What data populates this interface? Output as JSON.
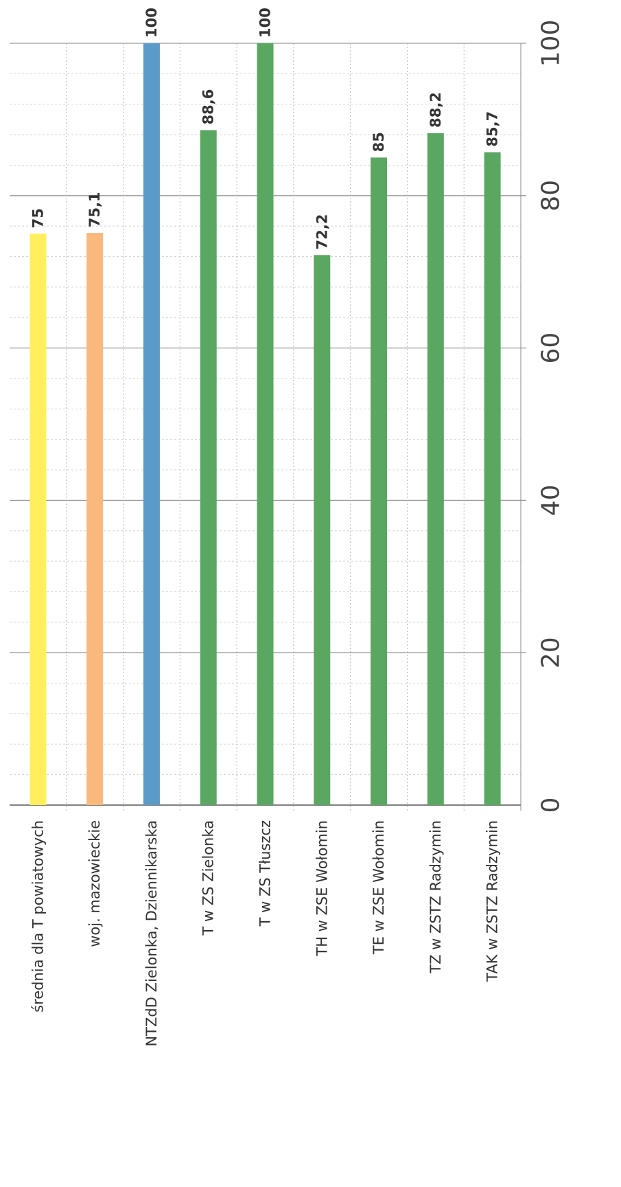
{
  "chart_data": {
    "type": "bar",
    "orientation": "horizontal",
    "categories": [
      "średnia dla T powiatowych",
      "woj. mazowieckie",
      "NTZdD Zielonka, Dziennikarska",
      "T w ZS Zielonka",
      "T w ZS Tłuszcz",
      "TH w ZSE Wołomin",
      "TE w ZSE Wołomin",
      "TZ w ZSTZ Radzymin",
      "TAK w ZSTZ Radzymin"
    ],
    "values": [
      75,
      75.1,
      100,
      88.6,
      100,
      72.2,
      85,
      88.2,
      85.7
    ],
    "value_labels": [
      "75",
      "75,1",
      "100",
      "88,6",
      "100",
      "72,2",
      "85",
      "88,2",
      "85,7"
    ],
    "colors": [
      "#ffef5c",
      "#f9b97c",
      "#5b9bc9",
      "#5aa762",
      "#5aa762",
      "#5aa762",
      "#5aa762",
      "#5aa762",
      "#5aa762"
    ],
    "xlim": [
      0,
      100
    ],
    "ticks": [
      "0",
      "20",
      "40",
      "60",
      "80",
      "100"
    ],
    "grid": true,
    "title": "",
    "xlabel": "",
    "ylabel": ""
  }
}
